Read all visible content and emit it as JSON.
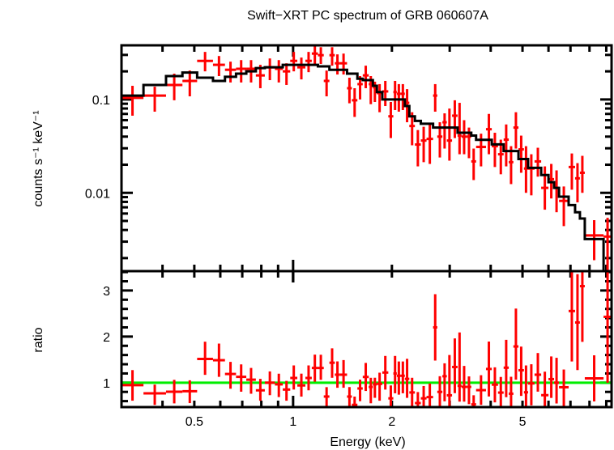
{
  "chart_data": {
    "type": "scatter",
    "title": "Swift−XRT PC spectrum of GRB 060607A",
    "xlabel": "Energy (keV)",
    "ylabel_top": "counts s⁻¹ keV⁻¹",
    "ylabel_bottom": "ratio",
    "x_scale": "log",
    "y_scale_top": "log",
    "xlim": [
      0.3,
      9.34
    ],
    "ylim_top": [
      0.00145,
      0.38
    ],
    "ylim_bottom": [
      0.47,
      3.42
    ],
    "x_ticks": [
      {
        "value": 0.5,
        "label": "0.5"
      },
      {
        "value": 1,
        "label": "1"
      },
      {
        "value": 2,
        "label": "2"
      },
      {
        "value": 5,
        "label": "5"
      }
    ],
    "y_ticks_top": [
      {
        "value": 0.1,
        "label": "0.1"
      },
      {
        "value": 0.01,
        "label": "0.01"
      }
    ],
    "y_ticks_bottom": [
      {
        "value": 1,
        "label": "1"
      },
      {
        "value": 2,
        "label": "2"
      },
      {
        "value": 3,
        "label": "3"
      }
    ],
    "colors": {
      "data": "#ff0000",
      "model": "#000000",
      "unity_line": "#00ee00"
    },
    "bin_edges_keV": [
      0.3,
      0.35,
      0.41,
      0.46,
      0.51,
      0.57,
      0.62,
      0.67,
      0.72,
      0.77,
      0.82,
      0.88,
      0.93,
      0.98,
      1.03,
      1.09,
      1.14,
      1.19,
      1.24,
      1.29,
      1.34,
      1.39,
      1.46,
      1.51,
      1.57,
      1.63,
      1.7,
      1.75,
      1.8,
      1.87,
      1.95,
      2.02,
      2.07,
      2.13,
      2.19,
      2.26,
      2.35,
      2.45,
      2.55,
      2.67,
      2.75,
      2.85,
      2.94,
      3.05,
      3.17,
      3.26,
      3.38,
      3.49,
      3.61,
      3.87,
      4.03,
      4.21,
      4.38,
      4.54,
      4.69,
      4.86,
      5.05,
      5.2,
      5.44,
      5.7,
      6.0,
      6.24,
      6.46,
      6.91,
      7.23,
      7.48,
      7.74,
      8.83,
      9.34
    ],
    "columns": [
      "counts",
      "counts_low",
      "counts_high",
      "model"
    ],
    "bins": [
      [
        0.104,
        0.067,
        0.14,
        0.11
      ],
      [
        0.11,
        0.074,
        0.137,
        0.143
      ],
      [
        0.143,
        0.098,
        0.189,
        0.178
      ],
      [
        0.158,
        0.108,
        0.204,
        0.194
      ],
      [
        0.259,
        0.2,
        0.323,
        0.171
      ],
      [
        0.235,
        0.178,
        0.292,
        0.158
      ],
      [
        0.208,
        0.152,
        0.254,
        0.175
      ],
      [
        0.213,
        0.152,
        0.264,
        0.189
      ],
      [
        0.213,
        0.152,
        0.264,
        0.2
      ],
      [
        0.181,
        0.132,
        0.235,
        0.217
      ],
      [
        0.221,
        0.161,
        0.275,
        0.221
      ],
      [
        0.213,
        0.152,
        0.264,
        0.221
      ],
      [
        0.2,
        0.143,
        0.244,
        0.235
      ],
      [
        0.259,
        0.2,
        0.323,
        0.235
      ],
      [
        0.221,
        0.164,
        0.281,
        0.235
      ],
      [
        0.259,
        0.196,
        0.323,
        0.235
      ],
      [
        0.31,
        0.24,
        0.378,
        0.235
      ],
      [
        0.298,
        0.24,
        0.363,
        0.226
      ],
      [
        0.158,
        0.108,
        0.204,
        0.226
      ],
      [
        0.298,
        0.23,
        0.363,
        0.208
      ],
      [
        0.244,
        0.185,
        0.304,
        0.208
      ],
      [
        0.244,
        0.185,
        0.31,
        0.208
      ],
      [
        0.132,
        0.091,
        0.171,
        0.189
      ],
      [
        0.098,
        0.065,
        0.132,
        0.189
      ],
      [
        0.146,
        0.1,
        0.178,
        0.167
      ],
      [
        0.181,
        0.132,
        0.23,
        0.161
      ],
      [
        0.146,
        0.089,
        0.178,
        0.161
      ],
      [
        0.135,
        0.094,
        0.155,
        0.14
      ],
      [
        0.117,
        0.073,
        0.146,
        0.12
      ],
      [
        0.122,
        0.085,
        0.158,
        0.1
      ],
      [
        0.066,
        0.0386,
        0.094,
        0.1
      ],
      [
        0.12,
        0.077,
        0.158,
        0.1
      ],
      [
        0.115,
        0.074,
        0.146,
        0.1
      ],
      [
        0.115,
        0.077,
        0.146,
        0.1
      ],
      [
        0.092,
        0.057,
        0.129,
        0.085
      ],
      [
        0.052,
        0.0323,
        0.073,
        0.066
      ],
      [
        0.0329,
        0.0192,
        0.047,
        0.059
      ],
      [
        0.0363,
        0.0213,
        0.051,
        0.055
      ],
      [
        0.0378,
        0.0204,
        0.054,
        0.055
      ],
      [
        0.11,
        0.074,
        0.146,
        0.05
      ],
      [
        0.04,
        0.0239,
        0.057,
        0.05
      ],
      [
        0.057,
        0.0298,
        0.071,
        0.05
      ],
      [
        0.0363,
        0.0221,
        0.08,
        0.05
      ],
      [
        0.067,
        0.0386,
        0.098,
        0.05
      ],
      [
        0.041,
        0.0259,
        0.092,
        0.044
      ],
      [
        0.04,
        0.0259,
        0.06,
        0.044
      ],
      [
        0.04,
        0.0235,
        0.05,
        0.044
      ],
      [
        0.0217,
        0.0137,
        0.0298,
        0.041
      ],
      [
        0.031,
        0.0192,
        0.043,
        0.037
      ],
      [
        0.048,
        0.0259,
        0.07,
        0.037
      ],
      [
        0.0316,
        0.0189,
        0.044,
        0.033
      ],
      [
        0.0259,
        0.0158,
        0.0371,
        0.033
      ],
      [
        0.0371,
        0.0192,
        0.054,
        0.028
      ],
      [
        0.0213,
        0.0124,
        0.0316,
        0.028
      ],
      [
        0.05,
        0.0298,
        0.073,
        0.028
      ],
      [
        0.0292,
        0.0164,
        0.041,
        0.023
      ],
      [
        0.0182,
        0.01,
        0.0316,
        0.023
      ],
      [
        0.0182,
        0.0094,
        0.0259,
        0.0185
      ],
      [
        0.0217,
        0.0149,
        0.0304,
        0.0185
      ],
      [
        0.0113,
        0.0066,
        0.0192,
        0.0155
      ],
      [
        0.014,
        0.0087,
        0.0204,
        0.013
      ],
      [
        0.0113,
        0.0062,
        0.0174,
        0.0113
      ],
      [
        0.0082,
        0.0044,
        0.0117,
        0.0091
      ],
      [
        0.0189,
        0.0108,
        0.0264,
        0.0074
      ],
      [
        0.0143,
        0.0079,
        0.0208,
        0.0062
      ],
      [
        0.0164,
        0.01,
        0.0249,
        0.0053
      ],
      [
        0.0035,
        0.0019,
        0.0051,
        0.0032
      ],
      [
        0.0034,
        0.0014,
        0.0054,
        0.0014
      ]
    ]
  }
}
